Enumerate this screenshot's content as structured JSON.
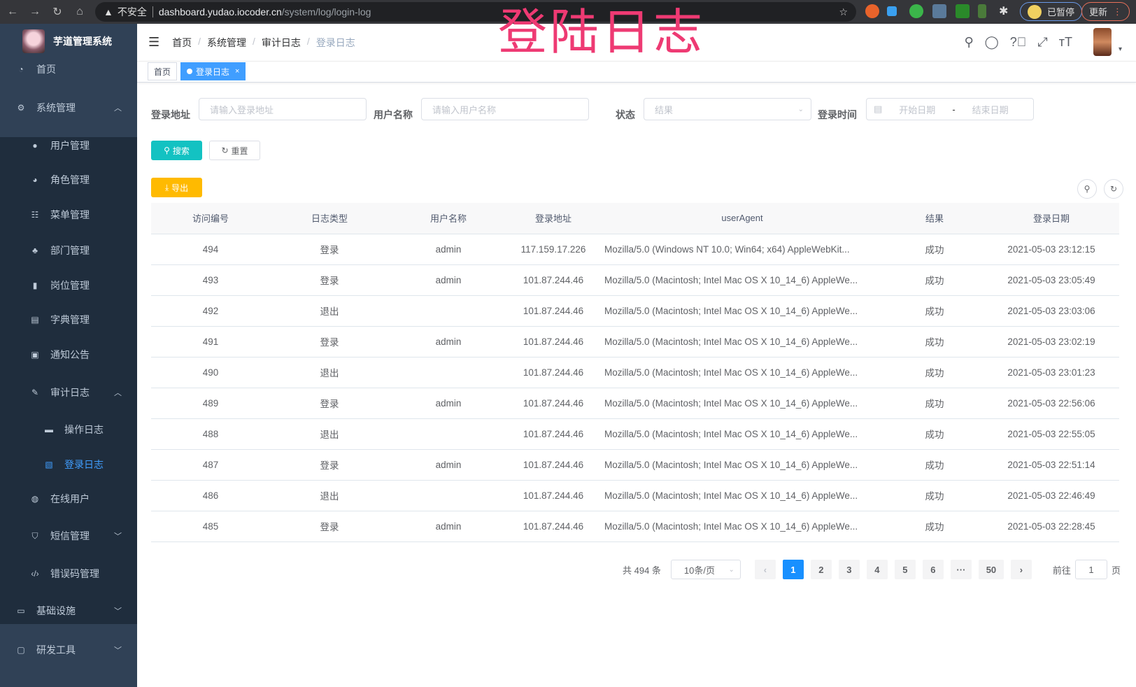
{
  "browser": {
    "security": "不安全",
    "url_host": "dashboard.yudao.iocoder.cn",
    "url_path": "/system/log/login-log",
    "profile": "已暂停",
    "update": "更新"
  },
  "overlay_title": "登陆日志",
  "sidebar": {
    "title": "芋道管理系统",
    "items": [
      {
        "label": "首页",
        "icon": "dashboard-icon"
      },
      {
        "label": "系统管理",
        "icon": "gear-icon",
        "arrow": "up"
      },
      {
        "label": "用户管理",
        "icon": "user-icon"
      },
      {
        "label": "角色管理",
        "icon": "peoples-icon"
      },
      {
        "label": "菜单管理",
        "icon": "tree-table-icon"
      },
      {
        "label": "部门管理",
        "icon": "tree-icon"
      },
      {
        "label": "岗位管理",
        "icon": "post-icon"
      },
      {
        "label": "字典管理",
        "icon": "dict-icon"
      },
      {
        "label": "通知公告",
        "icon": "message-icon"
      },
      {
        "label": "审计日志",
        "icon": "log-icon",
        "arrow": "up"
      },
      {
        "label": "操作日志",
        "icon": "form-icon"
      },
      {
        "label": "登录日志",
        "icon": "logininfor-icon",
        "active": true
      },
      {
        "label": "在线用户",
        "icon": "online-icon"
      },
      {
        "label": "短信管理",
        "icon": "shield-icon",
        "arrow": "down"
      },
      {
        "label": "错误码管理",
        "icon": "code-icon"
      },
      {
        "label": "基础设施",
        "icon": "monitor-icon",
        "arrow": "down"
      },
      {
        "label": "研发工具",
        "icon": "tool-icon",
        "arrow": "down"
      }
    ]
  },
  "breadcrumb": [
    "首页",
    "系统管理",
    "审计日志",
    "登录日志"
  ],
  "tags": [
    {
      "label": "首页"
    },
    {
      "label": "登录日志",
      "close": "×"
    }
  ],
  "search": {
    "address_label": "登录地址",
    "address_placeholder": "请输入登录地址",
    "username_label": "用户名称",
    "username_placeholder": "请输入用户名称",
    "status_label": "状态",
    "status_placeholder": "结果",
    "time_label": "登录时间",
    "start_placeholder": "开始日期",
    "range_sep": "-",
    "end_placeholder": "结束日期",
    "search_btn": "搜索",
    "reset_btn": "重置",
    "export_btn": "导出"
  },
  "colors": {
    "primary": "#1890ff",
    "search_btn": "#13c2c2",
    "export_btn": "#ffba00",
    "sidebar_bg": "#304156",
    "overlay": "#ee3a73"
  },
  "table": {
    "headers": [
      "访问编号",
      "日志类型",
      "用户名称",
      "登录地址",
      "userAgent",
      "结果",
      "登录日期"
    ],
    "rows": [
      [
        "494",
        "登录",
        "admin",
        "117.159.17.226",
        "Mozilla/5.0 (Windows NT 10.0; Win64; x64) AppleWebKit...",
        "成功",
        "2021-05-03 23:12:15"
      ],
      [
        "493",
        "登录",
        "admin",
        "101.87.244.46",
        "Mozilla/5.0 (Macintosh; Intel Mac OS X 10_14_6) AppleWe...",
        "成功",
        "2021-05-03 23:05:49"
      ],
      [
        "492",
        "退出",
        "",
        "101.87.244.46",
        "Mozilla/5.0 (Macintosh; Intel Mac OS X 10_14_6) AppleWe...",
        "成功",
        "2021-05-03 23:03:06"
      ],
      [
        "491",
        "登录",
        "admin",
        "101.87.244.46",
        "Mozilla/5.0 (Macintosh; Intel Mac OS X 10_14_6) AppleWe...",
        "成功",
        "2021-05-03 23:02:19"
      ],
      [
        "490",
        "退出",
        "",
        "101.87.244.46",
        "Mozilla/5.0 (Macintosh; Intel Mac OS X 10_14_6) AppleWe...",
        "成功",
        "2021-05-03 23:01:23"
      ],
      [
        "489",
        "登录",
        "admin",
        "101.87.244.46",
        "Mozilla/5.0 (Macintosh; Intel Mac OS X 10_14_6) AppleWe...",
        "成功",
        "2021-05-03 22:56:06"
      ],
      [
        "488",
        "退出",
        "",
        "101.87.244.46",
        "Mozilla/5.0 (Macintosh; Intel Mac OS X 10_14_6) AppleWe...",
        "成功",
        "2021-05-03 22:55:05"
      ],
      [
        "487",
        "登录",
        "admin",
        "101.87.244.46",
        "Mozilla/5.0 (Macintosh; Intel Mac OS X 10_14_6) AppleWe...",
        "成功",
        "2021-05-03 22:51:14"
      ],
      [
        "486",
        "退出",
        "",
        "101.87.244.46",
        "Mozilla/5.0 (Macintosh; Intel Mac OS X 10_14_6) AppleWe...",
        "成功",
        "2021-05-03 22:46:49"
      ],
      [
        "485",
        "登录",
        "admin",
        "101.87.244.46",
        "Mozilla/5.0 (Macintosh; Intel Mac OS X 10_14_6) AppleWe...",
        "成功",
        "2021-05-03 22:28:45"
      ]
    ]
  },
  "pagination": {
    "total": "共 494 条",
    "page_size": "10条/页",
    "pages": [
      "1",
      "2",
      "3",
      "4",
      "5",
      "6",
      "···",
      "50"
    ],
    "current": "1",
    "prev": "‹",
    "next": "›",
    "goto_label": "前往",
    "goto_value": "1",
    "goto_suffix": "页"
  }
}
